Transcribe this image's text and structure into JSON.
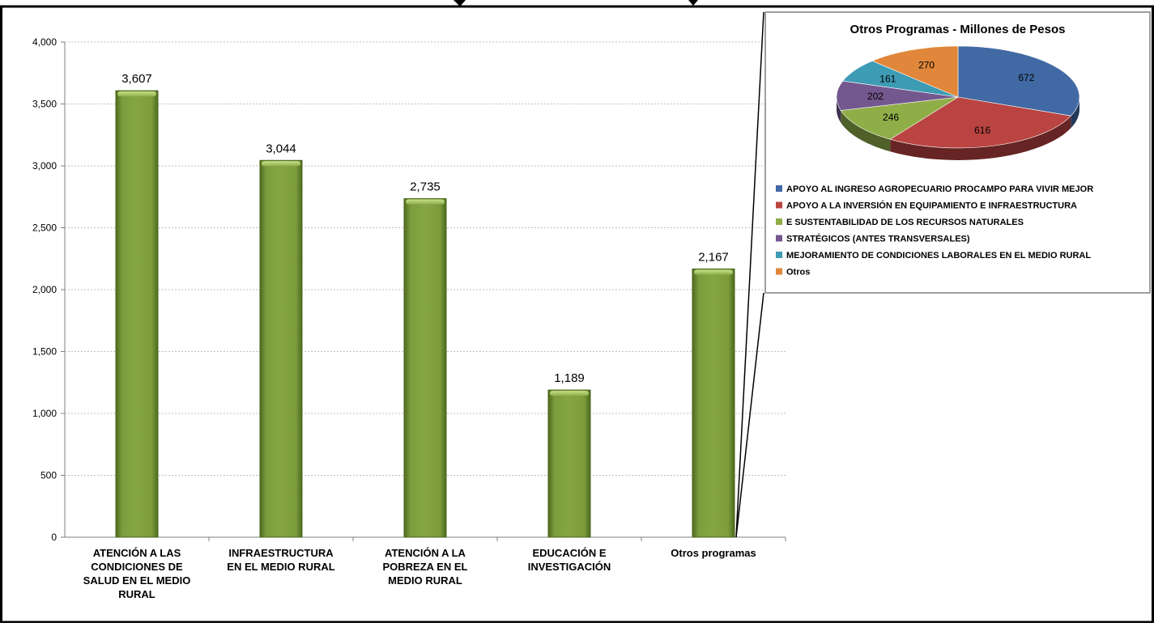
{
  "chart_data": [
    {
      "type": "bar",
      "title": "",
      "xlabel": "",
      "ylabel": "",
      "ylim": [
        0,
        4000
      ],
      "yticks": [
        0,
        500,
        1000,
        1500,
        2000,
        2500,
        3000,
        3500,
        4000
      ],
      "ytick_labels": [
        "0",
        "500",
        "1,000",
        "1,500",
        "2,000",
        "2,500",
        "3,000",
        "3,500",
        "4,000"
      ],
      "grid": true,
      "bar_color": "#7a9a3a",
      "categories": [
        [
          "ATENCIÓN A LAS",
          "CONDICIONES DE",
          "SALUD EN EL MEDIO",
          "RURAL"
        ],
        [
          "INFRAESTRUCTURA",
          "EN EL MEDIO RURAL"
        ],
        [
          "ATENCIÓN A LA",
          "POBREZA EN EL",
          "MEDIO RURAL"
        ],
        [
          "EDUCACIÓN E",
          "INVESTIGACIÓN"
        ],
        [
          "Otros programas"
        ]
      ],
      "values": [
        3607,
        3044,
        2735,
        1189,
        2167
      ],
      "value_labels": [
        "3,607",
        "3,044",
        "2,735",
        "1,189",
        "2,167"
      ]
    },
    {
      "type": "pie",
      "title": "Otros Programas - Millones de Pesos",
      "slices": [
        {
          "label": "APOYO AL INGRESO AGROPECUARIO PROCAMPO PARA VIVIR MEJOR",
          "value": 672,
          "value_label": "672",
          "color": "#4169a4"
        },
        {
          "label": "APOYO A LA INVERSIÓN EN EQUIPAMIENTO E INFRAESTRUCTURA",
          "value": 616,
          "value_label": "616",
          "color": "#ba4441"
        },
        {
          "label": "E SUSTENTABILIDAD DE LOS RECURSOS NATURALES",
          "value": 246,
          "value_label": "246",
          "color": "#8fae48"
        },
        {
          "label": "STRATÉGICOS (ANTES TRANSVERSALES)",
          "value": 202,
          "value_label": "202",
          "color": "#73578f"
        },
        {
          "label": "MEJORAMIENTO DE CONDICIONES LABORALES EN EL MEDIO RURAL",
          "value": 161,
          "value_label": "161",
          "color": "#3d9bb4"
        },
        {
          "label": "Otros",
          "value": 270,
          "value_label": "270",
          "color": "#e0873b"
        }
      ],
      "legend_position": "bottom",
      "legend_entries": [
        "APOYO AL INGRESO AGROPECUARIO PROCAMPO PARA VIVIR MEJOR",
        "APOYO A LA INVERSIÓN EN EQUIPAMIENTO E INFRAESTRUCTURA",
        "E SUSTENTABILIDAD DE LOS RECURSOS NATURALES",
        "STRATÉGICOS (ANTES TRANSVERSALES)",
        "MEJORAMIENTO DE CONDICIONES LABORALES EN EL MEDIO RURAL",
        "Otros"
      ]
    }
  ]
}
